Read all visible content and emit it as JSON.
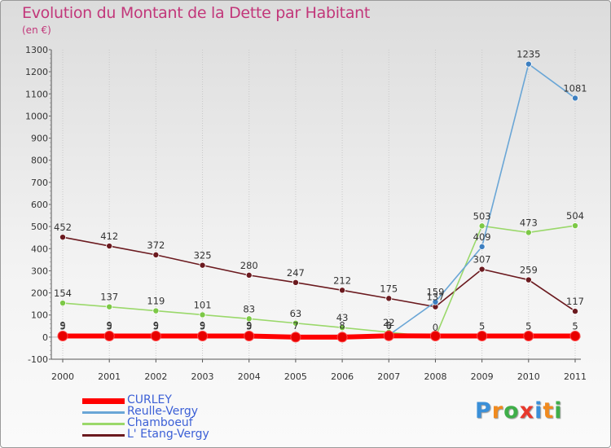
{
  "header": {
    "title": "Evolution du Montant de la Dette par Habitant",
    "subtitle": "(en €)"
  },
  "logo": {
    "letters": [
      {
        "ch": "P",
        "color": "#3a8fd8"
      },
      {
        "ch": "r",
        "color": "#f08a1e"
      },
      {
        "ch": "o",
        "color": "#3fae49"
      },
      {
        "ch": "x",
        "color": "#e8382c"
      },
      {
        "ch": "i",
        "color": "#3a8fd8"
      },
      {
        "ch": "t",
        "color": "#f08a1e"
      },
      {
        "ch": "i",
        "color": "#3fae49"
      }
    ]
  },
  "chart_data": {
    "type": "line",
    "title": "Evolution du Montant de la Dette par Habitant",
    "ylabel": "(en €)",
    "ylim": [
      -100,
      1300
    ],
    "y_ticks": [
      "-100",
      "0",
      "100",
      "200",
      "300",
      "400",
      "500",
      "600",
      "700",
      "800",
      "900",
      "1000",
      "1100",
      "1200",
      "1300"
    ],
    "x": [
      "2000",
      "2001",
      "2002",
      "2003",
      "2004",
      "2005",
      "2006",
      "2007",
      "2008",
      "2009",
      "2010",
      "2011"
    ],
    "grid": "vertical",
    "legend_position": "bottom-left",
    "series": [
      {
        "name": "L' Etang-Vergy",
        "color": "#6b1a1f",
        "marker_color": "#6b1a1f",
        "values": [
          452,
          412,
          372,
          325,
          280,
          247,
          212,
          175,
          137,
          307,
          259,
          117
        ],
        "labels": [
          "452",
          "412",
          "372",
          "325",
          "280",
          "247",
          "212",
          "175",
          "137",
          "307",
          "259",
          "117"
        ]
      },
      {
        "name": "Chamboeuf",
        "color": "#9ad86a",
        "marker_color": "#7cc846",
        "values": [
          154,
          137,
          119,
          101,
          83,
          63,
          43,
          22,
          0,
          503,
          473,
          504
        ],
        "labels": [
          "154",
          "137",
          "119",
          "101",
          "83",
          "63",
          "43",
          "22",
          "0",
          "503",
          "473",
          "504"
        ]
      },
      {
        "name": "Reulle-Vergy",
        "color": "#6aa6d6",
        "marker_color": "#3d7fc0",
        "values": [
          9,
          9,
          9,
          9,
          9,
          7,
          8,
          9,
          159,
          409,
          1235,
          1081
        ],
        "labels": [
          "9",
          "9",
          "9",
          "9",
          "9",
          "7",
          "8",
          "9",
          "159",
          "409",
          "1235",
          "1081"
        ]
      },
      {
        "name": "CURLEY",
        "color": "#ff0000",
        "marker_color": "#e80000",
        "values": [
          5,
          5,
          5,
          5,
          5,
          0,
          0,
          6,
          5,
          5,
          5,
          5
        ],
        "labels": [
          "5",
          "5",
          "5",
          "5",
          "5",
          "",
          "",
          "6",
          "",
          "5",
          "5",
          "5"
        ]
      }
    ]
  }
}
